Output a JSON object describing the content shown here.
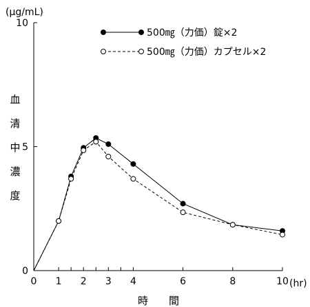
{
  "chart_data": {
    "type": "line",
    "y_unit": "(μg/mL)",
    "ylabel_chars": [
      "血",
      "清",
      "中",
      "濃",
      "度"
    ],
    "xlabel": "時　　間",
    "x_unit": "(hr)",
    "xlim": [
      0,
      10
    ],
    "ylim": [
      0,
      10
    ],
    "x_ticks": [
      0,
      1,
      1.5,
      2,
      2.5,
      3,
      3.5,
      4,
      6,
      8,
      10
    ],
    "x_tick_labels": [
      {
        "x": 0,
        "label": "0"
      },
      {
        "x": 1,
        "label": "1"
      },
      {
        "x": 2,
        "label": "2"
      },
      {
        "x": 3,
        "label": "3"
      },
      {
        "x": 4,
        "label": "4"
      },
      {
        "x": 6,
        "label": "6"
      },
      {
        "x": 8,
        "label": "8"
      },
      {
        "x": 10,
        "label": "10"
      }
    ],
    "y_ticks": [
      0,
      5,
      10
    ],
    "y_tick_labels": [
      {
        "y": 0,
        "label": "0"
      },
      {
        "y": 5,
        "label": "5"
      },
      {
        "y": 10,
        "label": "10"
      }
    ],
    "grid": false,
    "legend_position": "top-right",
    "series": [
      {
        "name": "500㎎（力価）錠×2",
        "marker": "filled-circle",
        "line_style": "solid",
        "x": [
          0,
          1,
          1.5,
          2,
          2.5,
          3,
          4,
          6,
          8,
          10
        ],
        "y": [
          0,
          2.0,
          3.8,
          4.95,
          5.35,
          5.1,
          4.3,
          2.7,
          1.85,
          1.6
        ]
      },
      {
        "name": "500㎎（力価）カプセル×2",
        "marker": "open-circle",
        "line_style": "dashed",
        "x": [
          0,
          1,
          1.5,
          2,
          2.5,
          3,
          4,
          6,
          8,
          10
        ],
        "y": [
          0,
          2.0,
          3.7,
          4.85,
          5.2,
          4.6,
          3.7,
          2.35,
          1.85,
          1.45
        ]
      }
    ]
  }
}
